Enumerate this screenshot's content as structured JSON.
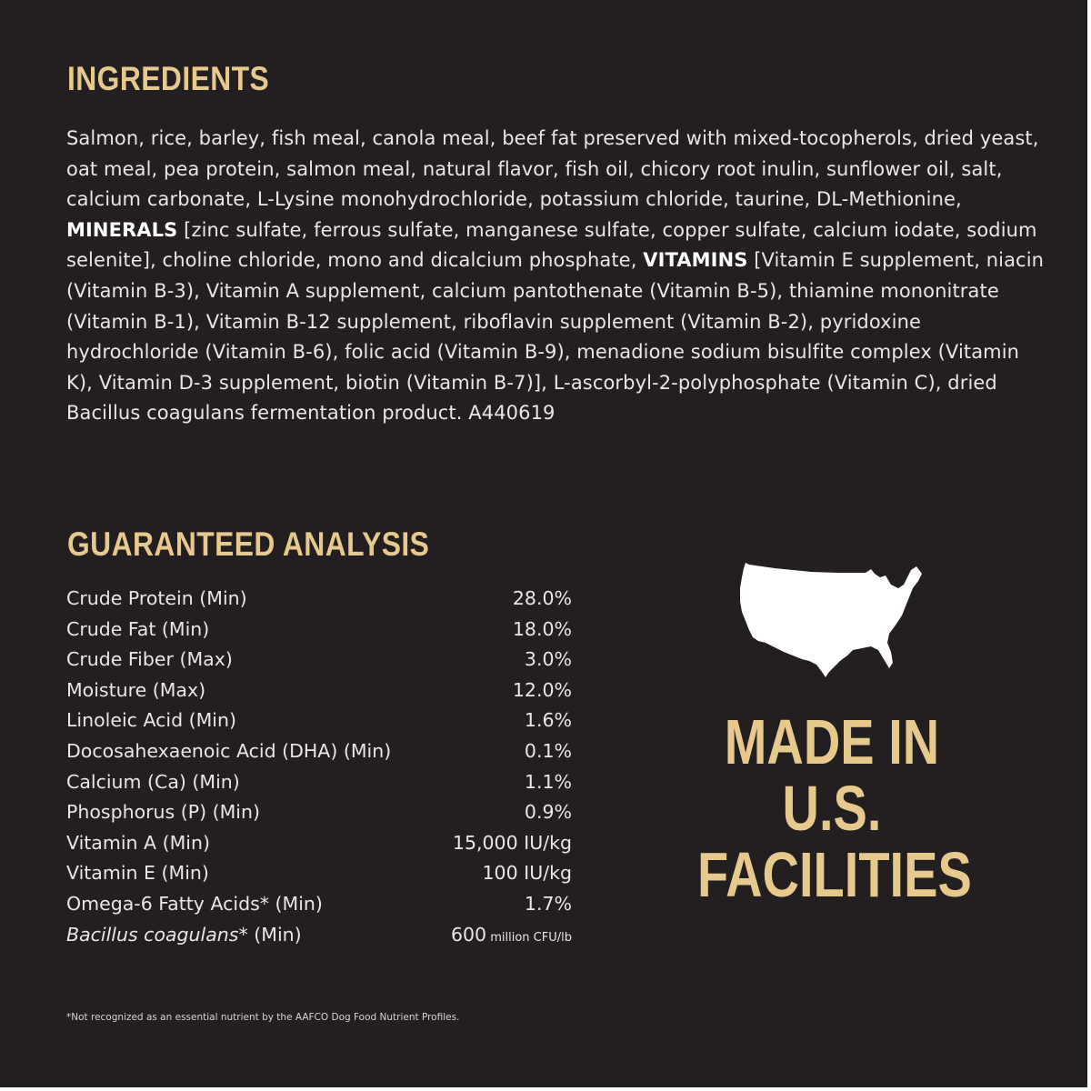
{
  "ingredients": {
    "heading": "INGREDIENTS",
    "text_1": "Salmon, rice, barley, fish meal, canola meal, beef fat preserved with mixed-tocopherols, dried yeast, oat meal, pea protein, salmon meal, natural flavor, fish oil, chicory root inulin, sunflower oil, salt, calcium carbonate, L-Lysine monohydrochloride, potassium chloride, taurine, DL-Methionine, ",
    "minerals_label": "MINERALS",
    "text_2": " [zinc sulfate, ferrous sulfate, manganese sulfate, copper sulfate, calcium iodate, sodium selenite], choline chloride, mono and dicalcium phosphate, ",
    "vitamins_label": "VITAMINS",
    "text_3": " [Vitamin E supplement, niacin (Vitamin B-3), Vitamin A supplement, calcium pantothenate (Vitamin B-5), thiamine mononitrate (Vitamin B-1), Vitamin B-12 supplement, riboflavin supplement (Vitamin B-2), pyridoxine hydrochloride (Vitamin B-6), folic acid (Vitamin B-9), menadione sodium bisulfite complex (Vitamin K), Vitamin D-3 supplement, biotin (Vitamin B-7)], L-ascorbyl-2-polyphosphate (Vitamin C), dried Bacillus coagulans fermentation product. A440619"
  },
  "analysis": {
    "heading": "GUARANTEED ANALYSIS",
    "rows": [
      {
        "name": "Crude Protein (Min)",
        "value": "28.0%"
      },
      {
        "name": "Crude Fat (Min)",
        "value": "18.0%"
      },
      {
        "name": "Crude Fiber (Max)",
        "value": "3.0%"
      },
      {
        "name": "Moisture (Max)",
        "value": "12.0%"
      },
      {
        "name": "Linoleic Acid (Min)",
        "value": "1.6%"
      },
      {
        "name": "Docosahexaenoic Acid (DHA) (Min)",
        "value": "0.1%"
      },
      {
        "name": "Calcium (Ca) (Min)",
        "value": "1.1%"
      },
      {
        "name": "Phosphorus (P) (Min)",
        "value": "0.9%"
      },
      {
        "name": "Vitamin A (Min)",
        "value": "15,000 IU/kg"
      },
      {
        "name": "Vitamin E (Min)",
        "value": "100 IU/kg"
      },
      {
        "name": "Omega-6 Fatty Acids* (Min)",
        "value": "1.7%"
      }
    ],
    "last_row": {
      "name_italic": "Bacillus coagulans",
      "name_rest": "* (Min)",
      "value_main": "600",
      "value_unit": " million CFU/lb"
    },
    "footnote": "*Not recognized as an essential nutrient by the AAFCO Dog Food Nutrient Profiles."
  },
  "badge": {
    "icon": "usa-map-icon",
    "line1": "MADE IN",
    "line2": "U.S.",
    "line3": "FACILITIES"
  },
  "colors": {
    "background": "#231f20",
    "heading_gold": "#e8c98d",
    "text": "#e9e6e3"
  }
}
